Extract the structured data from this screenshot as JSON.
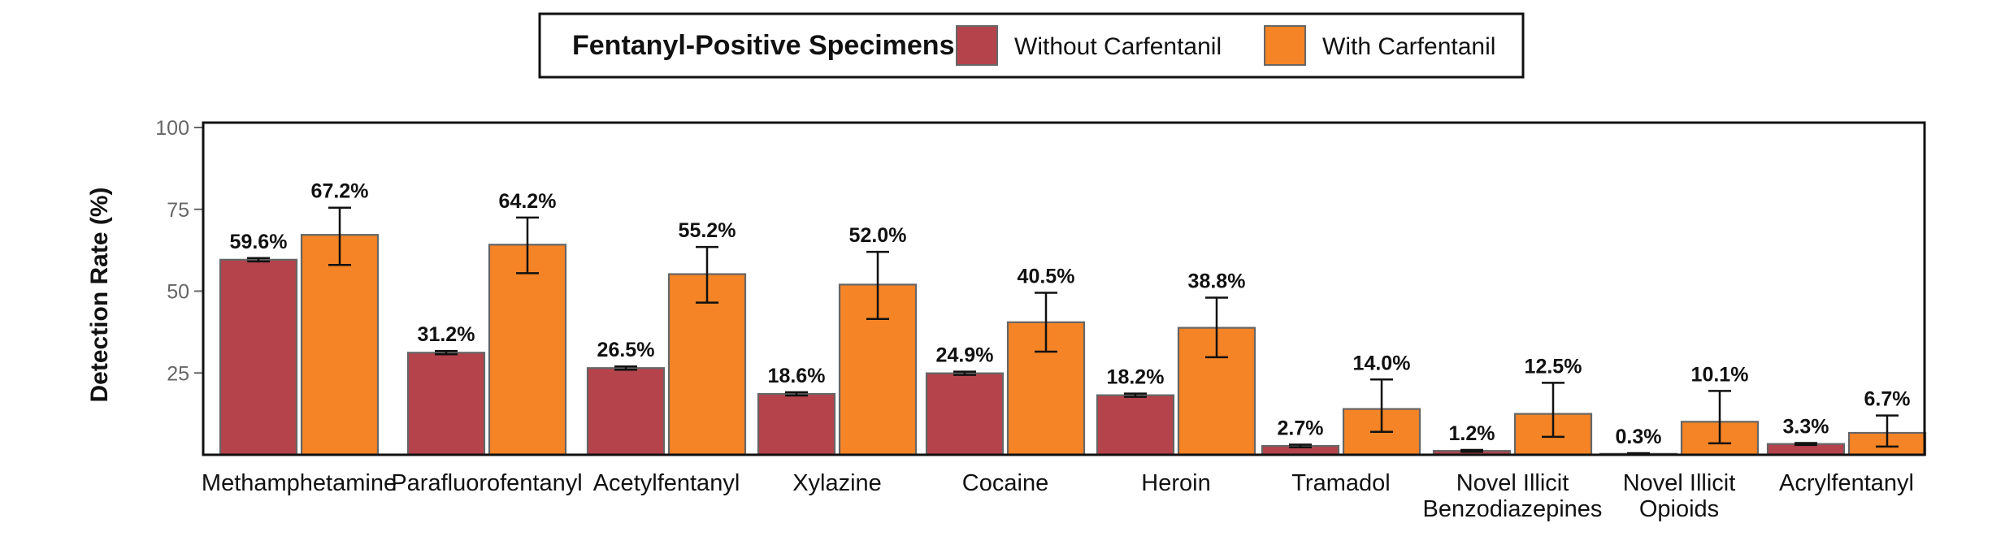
{
  "legend": {
    "title": "Fentanyl-Positive Specimens:",
    "items": [
      {
        "label": "Without Carfentanil",
        "color": "#b5434c"
      },
      {
        "label": "With Carfentanil",
        "color": "#f48426"
      }
    ]
  },
  "chart_data": {
    "type": "bar",
    "title": "",
    "xlabel": "",
    "ylabel": "Detection Rate (%)",
    "ylim": [
      0,
      100
    ],
    "yticks": [
      25,
      50,
      75,
      100
    ],
    "grid": false,
    "legend_position": "top-center",
    "categories": [
      "Methamphetamine",
      "Parafluorofentanyl",
      "Acetylfentanyl",
      "Xylazine",
      "Cocaine",
      "Heroin",
      "Tramadol",
      "Novel Illicit Benzodiazepines",
      "Novel Illicit Opioids",
      "Acrylfentanyl"
    ],
    "category_lines": [
      [
        "Methamphetamine"
      ],
      [
        "Parafluorofentanyl"
      ],
      [
        "Acetylfentanyl"
      ],
      [
        "Xylazine"
      ],
      [
        "Cocaine"
      ],
      [
        "Heroin"
      ],
      [
        "Tramadol"
      ],
      [
        "Novel Illicit",
        "Benzodiazepines"
      ],
      [
        "Novel Illicit",
        "Opioids"
      ],
      [
        "Acrylfentanyl"
      ]
    ],
    "series": [
      {
        "name": "Without Carfentanil",
        "color": "#b5434c",
        "values": [
          59.6,
          31.2,
          26.5,
          18.6,
          24.9,
          18.2,
          2.7,
          1.2,
          0.3,
          3.3
        ],
        "labels": [
          "59.6%",
          "31.2%",
          "26.5%",
          "18.6%",
          "24.9%",
          "18.2%",
          "2.7%",
          "1.2%",
          "0.3%",
          "3.3%"
        ],
        "error_low": [
          59.1,
          30.7,
          26.0,
          18.1,
          24.4,
          17.7,
          2.3,
          0.9,
          0.1,
          3.0
        ],
        "error_high": [
          60.1,
          31.7,
          27.0,
          19.1,
          25.4,
          18.7,
          3.1,
          1.5,
          0.5,
          3.6
        ]
      },
      {
        "name": "With Carfentanil",
        "color": "#f48426",
        "values": [
          67.2,
          64.2,
          55.2,
          52.0,
          40.5,
          38.8,
          14.0,
          12.5,
          10.1,
          6.7
        ],
        "labels": [
          "67.2%",
          "64.2%",
          "55.2%",
          "52.0%",
          "40.5%",
          "38.8%",
          "14.0%",
          "12.5%",
          "10.1%",
          "6.7%"
        ],
        "error_low": [
          58.0,
          55.5,
          46.5,
          41.5,
          31.5,
          29.8,
          7.0,
          5.5,
          3.5,
          2.5
        ],
        "error_high": [
          75.5,
          72.5,
          63.5,
          62.0,
          49.5,
          48.0,
          23.0,
          22.0,
          19.5,
          12.0
        ]
      }
    ]
  }
}
